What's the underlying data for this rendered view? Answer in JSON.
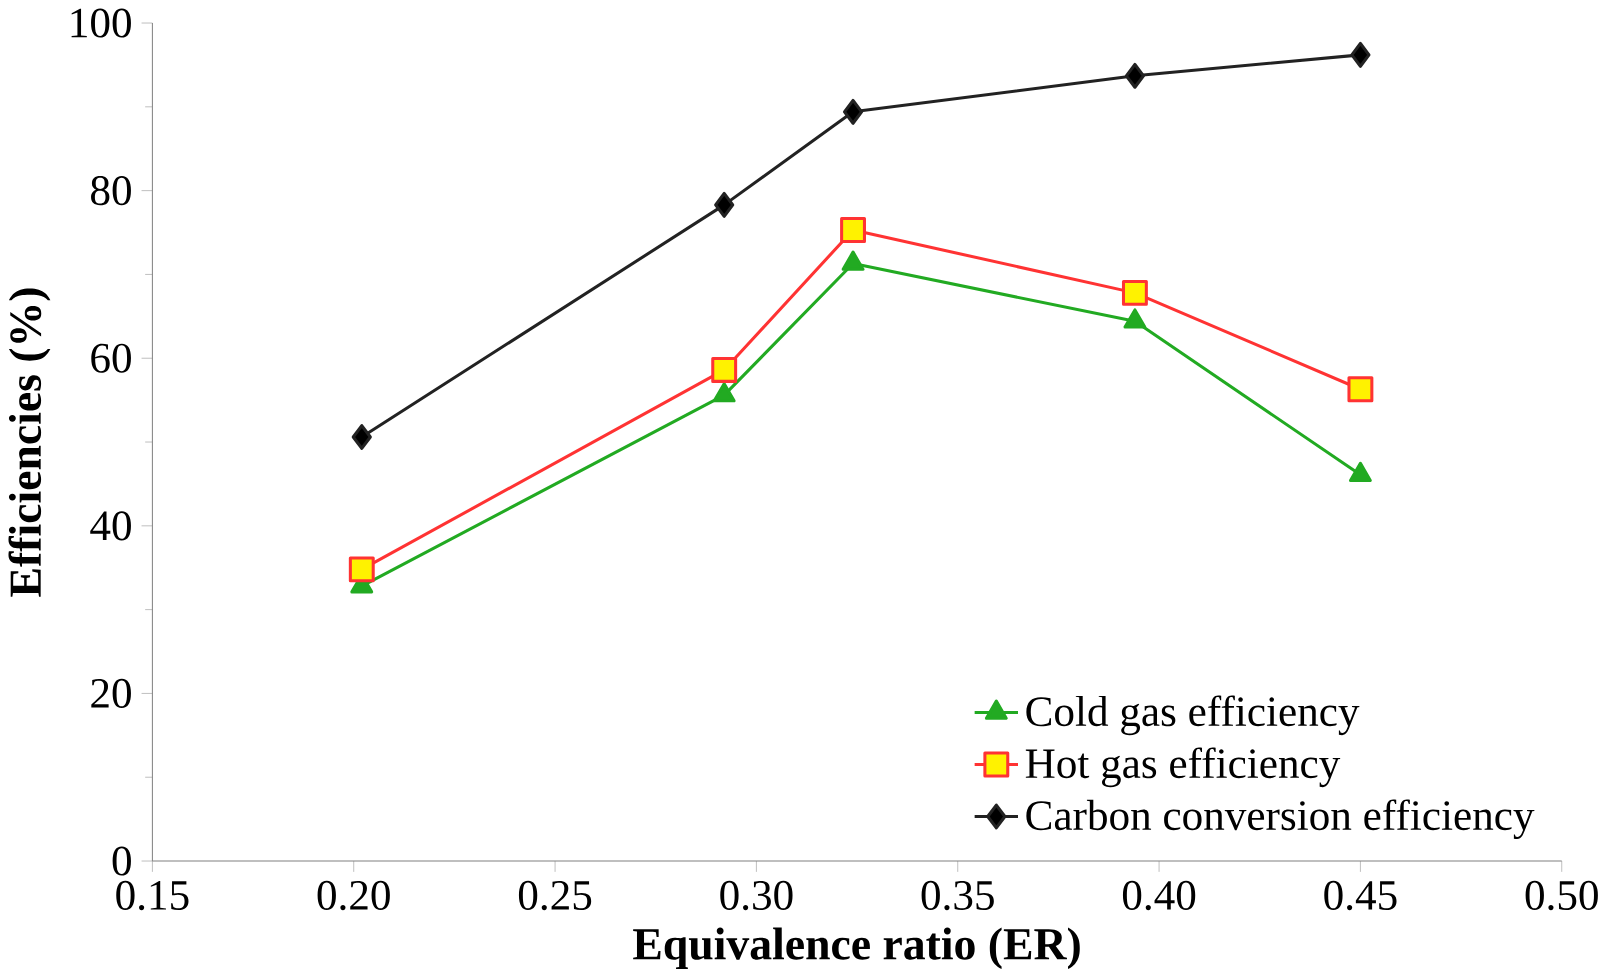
{
  "chart_data": {
    "type": "line",
    "xlabel": "Equivalence ratio (ER)",
    "ylabel": "Efficiencies (%)",
    "x": [
      0.202,
      0.292,
      0.324,
      0.394,
      0.45
    ],
    "series": [
      {
        "name": "Cold gas efficiency",
        "color": "#22aa22",
        "marker": "triangle",
        "values": [
          32.8,
          55.6,
          71.3,
          64.4,
          46.1
        ]
      },
      {
        "name": "Hot gas efficiency",
        "color": "#ff3333",
        "marker": "square",
        "values": [
          34.8,
          58.6,
          75.3,
          67.8,
          56.3
        ]
      },
      {
        "name": "Carbon conversion efficiency",
        "color": "#222222",
        "marker": "diamond",
        "values": [
          50.6,
          78.3,
          89.4,
          93.7,
          96.2
        ]
      }
    ],
    "xlim": [
      0.15,
      0.5
    ],
    "xticks": [
      {
        "value": 0.15,
        "label": "0.15"
      },
      {
        "value": 0.2,
        "label": "0.20"
      },
      {
        "value": 0.25,
        "label": "0.25"
      },
      {
        "value": 0.3,
        "label": "0.30"
      },
      {
        "value": 0.35,
        "label": "0.35"
      },
      {
        "value": 0.4,
        "label": "0.40"
      },
      {
        "value": 0.45,
        "label": "0.45"
      },
      {
        "value": 0.5,
        "label": "0.50"
      }
    ],
    "ylim": [
      0,
      100
    ],
    "yticks": [
      0,
      20,
      40,
      60,
      80,
      100
    ],
    "grid": false,
    "legend": "bottom right",
    "line_style": "solid"
  }
}
